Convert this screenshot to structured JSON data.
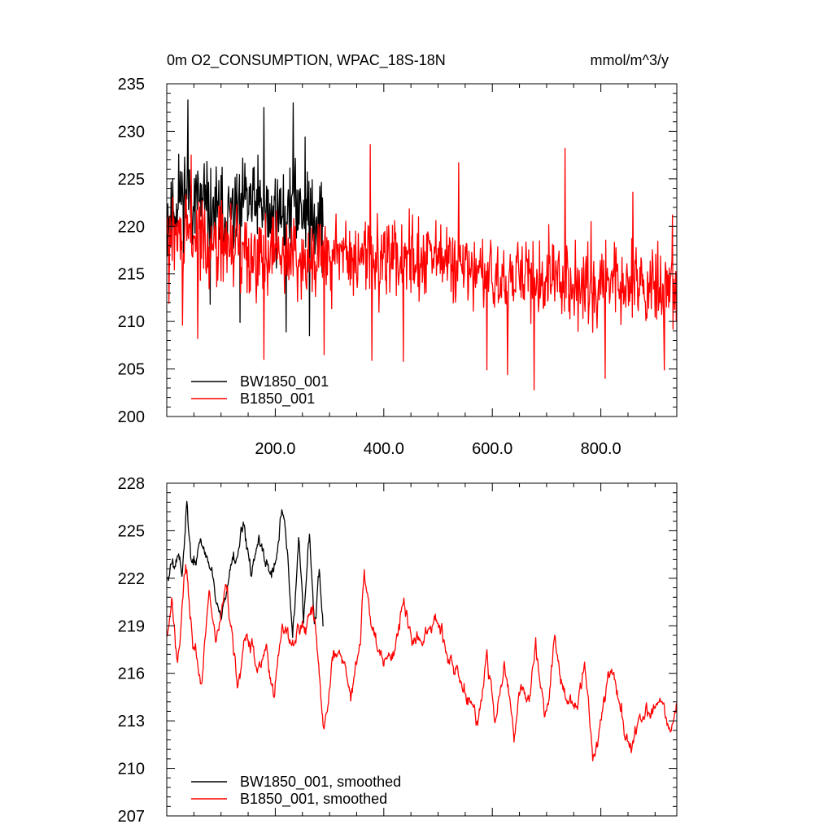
{
  "chart_data": [
    {
      "type": "line",
      "title": "0m O2_CONSUMPTION, WPAC_18S-18N",
      "units": "mmol/m^3/y",
      "xlim": [
        0,
        940
      ],
      "ylim": [
        200,
        235
      ],
      "yticks": [
        200,
        205,
        210,
        215,
        220,
        225,
        230,
        235
      ],
      "ytick_labels": [
        "200",
        "205",
        "210",
        "215",
        "220",
        "225",
        "230",
        "235"
      ],
      "xticks": [
        200,
        400,
        600,
        800
      ],
      "xtick_labels": [
        "200.0",
        "400.0",
        "600.0",
        "800.0"
      ],
      "legend": {
        "placement": "bottom-left"
      },
      "series": [
        {
          "name": "BW1850_001",
          "color": "#000000",
          "x_start": 1,
          "x_end": 288,
          "points": 288,
          "seed": 11,
          "noise": 4.1,
          "trend": [
            [
              0,
              220.8
            ],
            [
              30,
              223.5
            ],
            [
              60,
              222.6
            ],
            [
              90,
              221.2
            ],
            [
              120,
              221.0
            ],
            [
              150,
              222.6
            ],
            [
              180,
              221.4
            ],
            [
              200,
              220.5
            ],
            [
              230,
              222.4
            ],
            [
              260,
              222.0
            ],
            [
              288,
              220.5
            ]
          ],
          "extremes": [
            [
              22,
              227.6
            ],
            [
              39,
              233.3
            ],
            [
              80,
              211.8
            ],
            [
              135,
              209.9
            ],
            [
              168,
              227.5
            ],
            [
              179,
              232.5
            ],
            [
              200,
              225.0
            ],
            [
              220,
              208.9
            ],
            [
              233,
              233.0
            ],
            [
              255,
              229.4
            ],
            [
              263,
              208.5
            ],
            [
              276,
              221.0
            ]
          ]
        },
        {
          "name": "B1850_001",
          "color": "#ff0000",
          "x_start": 1,
          "x_end": 940,
          "points": 940,
          "seed": 29,
          "noise": 3.9,
          "trend": [
            [
              0,
              219.0
            ],
            [
              60,
              218.6
            ],
            [
              150,
              217.4
            ],
            [
              300,
              216.7
            ],
            [
              450,
              216.8
            ],
            [
              520,
              216.3
            ],
            [
              600,
              214.2
            ],
            [
              700,
              214.5
            ],
            [
              800,
              214.3
            ],
            [
              900,
              213.6
            ],
            [
              940,
              213.4
            ]
          ],
          "extremes": [
            [
              4,
              211.9
            ],
            [
              29,
              209.6
            ],
            [
              45,
              227.5
            ],
            [
              57,
              208.2
            ],
            [
              179,
              206.0
            ],
            [
              290,
              206.5
            ],
            [
              375,
              228.6
            ],
            [
              378,
              205.9
            ],
            [
              436,
              205.8
            ],
            [
              538,
              226.7
            ],
            [
              590,
              204.9
            ],
            [
              628,
              204.4
            ],
            [
              677,
              202.8
            ],
            [
              734,
              228.2
            ],
            [
              808,
              204.0
            ],
            [
              859,
              223.6
            ],
            [
              917,
              204.9
            ],
            [
              932,
              221.2
            ]
          ]
        }
      ]
    },
    {
      "type": "line",
      "xlim": [
        0,
        940
      ],
      "ylim": [
        207,
        228
      ],
      "yticks": [
        207,
        210,
        213,
        216,
        219,
        222,
        225,
        228
      ],
      "ytick_labels": [
        "207",
        "210",
        "213",
        "216",
        "219",
        "222",
        "225",
        "228"
      ],
      "legend": {
        "placement": "bottom-left"
      },
      "series": [
        {
          "name": "BW1850_001, smoothed",
          "color": "#000000",
          "x_start": 1,
          "x_end": 288,
          "points": 288,
          "seed": 5,
          "noise": 0.45,
          "anchors": [
            [
              1,
              222.0
            ],
            [
              10,
              223.0
            ],
            [
              20,
              223.8
            ],
            [
              28,
              222.6
            ],
            [
              37,
              227.3
            ],
            [
              45,
              223.2
            ],
            [
              55,
              223.3
            ],
            [
              65,
              224.6
            ],
            [
              78,
              222.8
            ],
            [
              90,
              220.4
            ],
            [
              102,
              219.7
            ],
            [
              115,
              222.3
            ],
            [
              128,
              222.7
            ],
            [
              143,
              225.7
            ],
            [
              155,
              222.2
            ],
            [
              170,
              224.9
            ],
            [
              183,
              223.2
            ],
            [
              196,
              222.5
            ],
            [
              205,
              223.6
            ],
            [
              213,
              226.0
            ],
            [
              222,
              223.5
            ],
            [
              232,
              218.0
            ],
            [
              243,
              224.4
            ],
            [
              252,
              219.5
            ],
            [
              263,
              224.8
            ],
            [
              272,
              219.4
            ],
            [
              281,
              222.4
            ],
            [
              288,
              218.7
            ]
          ]
        },
        {
          "name": "B1850_001, smoothed",
          "color": "#ff0000",
          "x_start": 1,
          "x_end": 940,
          "points": 940,
          "seed": 17,
          "noise": 0.45,
          "anchors": [
            [
              1,
              218.4
            ],
            [
              10,
              221.2
            ],
            [
              20,
              216.5
            ],
            [
              35,
              223.2
            ],
            [
              50,
              217.5
            ],
            [
              63,
              214.9
            ],
            [
              78,
              221.0
            ],
            [
              90,
              217.7
            ],
            [
              110,
              221.6
            ],
            [
              130,
              215.6
            ],
            [
              148,
              218.1
            ],
            [
              168,
              216.5
            ],
            [
              183,
              217.6
            ],
            [
              198,
              214.5
            ],
            [
              213,
              219.5
            ],
            [
              230,
              217.6
            ],
            [
              250,
              218.7
            ],
            [
              270,
              219.8
            ],
            [
              290,
              212.7
            ],
            [
              305,
              216.7
            ],
            [
              322,
              217.4
            ],
            [
              340,
              214.4
            ],
            [
              357,
              218.0
            ],
            [
              364,
              223.0
            ],
            [
              376,
              219.4
            ],
            [
              392,
              217.3
            ],
            [
              420,
              217.0
            ],
            [
              435,
              220.5
            ],
            [
              452,
              218.1
            ],
            [
              470,
              217.4
            ],
            [
              490,
              219.2
            ],
            [
              508,
              218.7
            ],
            [
              530,
              216.2
            ],
            [
              552,
              214.7
            ],
            [
              573,
              213.4
            ],
            [
              590,
              217.0
            ],
            [
              605,
              213.0
            ],
            [
              622,
              217.0
            ],
            [
              640,
              212.4
            ],
            [
              652,
              215.4
            ],
            [
              668,
              214.1
            ],
            [
              680,
              218.0
            ],
            [
              696,
              213.0
            ],
            [
              715,
              217.6
            ],
            [
              735,
              214.1
            ],
            [
              757,
              214.0
            ],
            [
              770,
              217.1
            ],
            [
              785,
              210.7
            ],
            [
              800,
              213.0
            ],
            [
              818,
              216.5
            ],
            [
              840,
              213.3
            ],
            [
              856,
              210.6
            ],
            [
              872,
              213.1
            ],
            [
              892,
              213.5
            ],
            [
              912,
              214.8
            ],
            [
              928,
              212.3
            ],
            [
              940,
              214.3
            ]
          ]
        }
      ]
    }
  ],
  "header": {
    "title_left": "0m O2_CONSUMPTION, WPAC_18S-18N",
    "title_right": "mmol/m^3/y"
  }
}
